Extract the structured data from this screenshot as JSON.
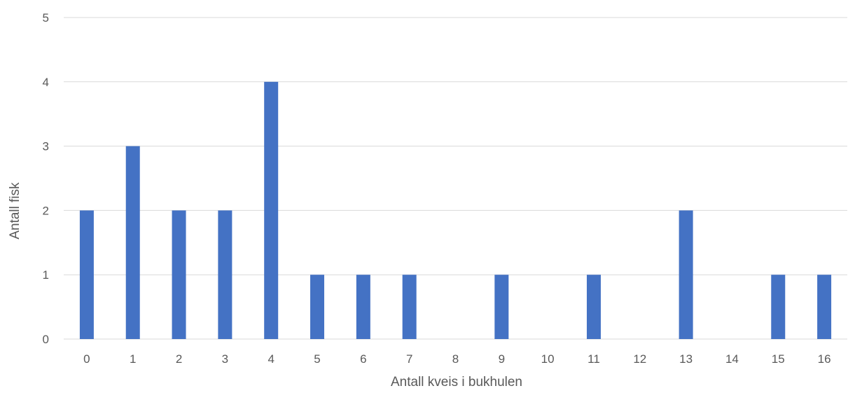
{
  "chart_data": {
    "type": "bar",
    "categories": [
      "0",
      "1",
      "2",
      "3",
      "4",
      "5",
      "6",
      "7",
      "8",
      "9",
      "10",
      "11",
      "12",
      "13",
      "14",
      "15",
      "16"
    ],
    "values": [
      2,
      3,
      2,
      2,
      4,
      1,
      1,
      1,
      0,
      1,
      0,
      1,
      0,
      2,
      0,
      1,
      1
    ],
    "xlabel": "Antall kveis i bukhulen",
    "ylabel": "Antall fisk",
    "ylim": [
      0,
      5
    ],
    "yticks": [
      0,
      1,
      2,
      3,
      4,
      5
    ],
    "grid": true,
    "legend": "none",
    "bar_color": "#4472c4"
  }
}
